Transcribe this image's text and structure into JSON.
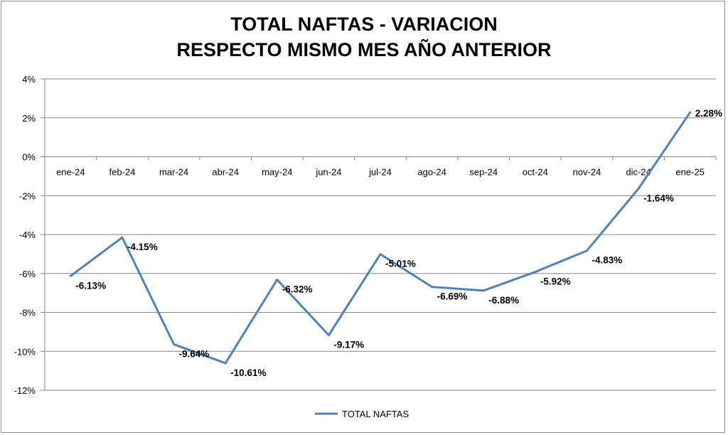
{
  "chart_data": {
    "type": "line",
    "title_line1": "TOTAL NAFTAS - VARIACION",
    "title_line2": "RESPECTO MISMO MES AÑO ANTERIOR",
    "categories": [
      "ene-24",
      "feb-24",
      "mar-24",
      "abr-24",
      "may-24",
      "jun-24",
      "jul-24",
      "ago-24",
      "sep-24",
      "oct-24",
      "nov-24",
      "dic-24",
      "ene-25"
    ],
    "series": [
      {
        "name": "TOTAL NAFTAS",
        "color": "#4f81bd",
        "values": [
          -6.13,
          -4.15,
          -9.64,
          -10.61,
          -6.32,
          -9.17,
          -5.01,
          -6.69,
          -6.88,
          null,
          -4.83,
          -1.64,
          2.28
        ],
        "interpolated_values": [
          -6.13,
          -4.15,
          -9.64,
          -10.61,
          -6.32,
          -9.17,
          -5.01,
          -6.69,
          -6.88,
          -5.92,
          -4.83,
          -1.64,
          2.28
        ],
        "labels": [
          "-6.13%",
          "-4.15%",
          "-9.64%",
          "-10.61%",
          "-6.32%",
          "-9.17%",
          "-5.01%",
          "-6.69%",
          "-6.88%",
          "-5.92%",
          "-4.83%",
          "-1.64%",
          "2.28%"
        ]
      }
    ],
    "ylim": [
      -12,
      4
    ],
    "yticks": [
      "4%",
      "2%",
      "0%",
      "-2%",
      "-4%",
      "-6%",
      "-8%",
      "-10%",
      "-12%"
    ],
    "ytick_values": [
      4,
      2,
      0,
      -2,
      -4,
      -6,
      -8,
      -10,
      -12
    ],
    "grid": true,
    "legend": {
      "position": "bottom",
      "label": "TOTAL NAFTAS"
    }
  }
}
